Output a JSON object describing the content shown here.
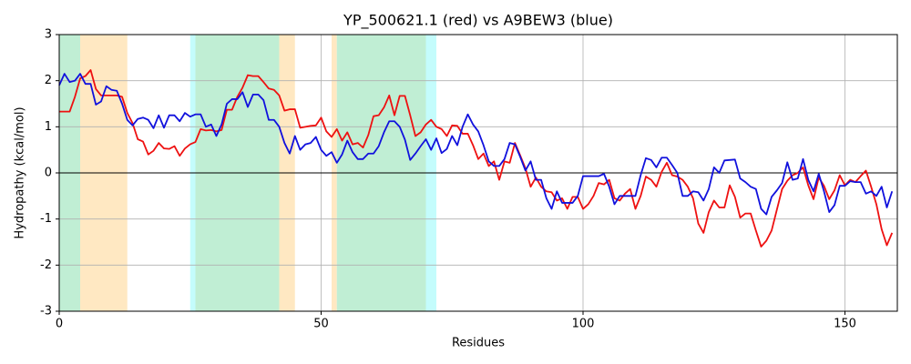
{
  "chart_data": {
    "type": "line",
    "title": "YP_500621.1 (red) vs A9BEW3 (blue)",
    "x_label": "Residues",
    "y_label": "Hydropathy (kcal/mol)",
    "xlim": [
      0,
      160
    ],
    "ylim": [
      -3,
      3
    ],
    "xticks": [
      0,
      50,
      100,
      150
    ],
    "yticks": [
      -3,
      -2,
      -1,
      0,
      1,
      2,
      3
    ],
    "grid": true,
    "regions": [
      {
        "start": 0,
        "end": 4,
        "color": "#c0eed4"
      },
      {
        "start": 4,
        "end": 13,
        "color": "#ffe8c2"
      },
      {
        "start": 25,
        "end": 26,
        "color": "#c4fcfc"
      },
      {
        "start": 26,
        "end": 42,
        "color": "#c0eed4"
      },
      {
        "start": 42,
        "end": 45,
        "color": "#ffe8c2"
      },
      {
        "start": 52,
        "end": 53,
        "color": "#ffe8c2"
      },
      {
        "start": 53,
        "end": 70,
        "color": "#c0eed4"
      },
      {
        "start": 70,
        "end": 72,
        "color": "#c4fcfc"
      }
    ],
    "x": [
      0,
      1,
      2,
      3,
      4,
      5,
      6,
      7,
      8,
      9,
      10,
      11,
      12,
      13,
      14,
      15,
      16,
      17,
      18,
      19,
      20,
      21,
      22,
      23,
      24,
      25,
      26,
      27,
      28,
      29,
      30,
      31,
      32,
      33,
      34,
      35,
      36,
      37,
      38,
      39,
      40,
      41,
      42,
      43,
      44,
      45,
      46,
      47,
      48,
      49,
      50,
      51,
      52,
      53,
      54,
      55,
      56,
      57,
      58,
      59,
      60,
      61,
      62,
      63,
      64,
      65,
      66,
      67,
      68,
      69,
      70,
      71,
      72,
      73,
      74,
      75,
      76,
      77,
      78,
      79,
      80,
      81,
      82,
      83,
      84,
      85,
      86,
      87,
      88,
      89,
      90,
      91,
      92,
      93,
      94,
      95,
      96,
      97,
      98,
      99,
      100,
      101,
      102,
      103,
      104,
      105,
      106,
      107,
      108,
      109,
      110,
      111,
      112,
      113,
      114,
      115,
      116,
      117,
      118,
      119,
      120,
      121,
      122,
      123,
      124,
      125,
      126,
      127,
      128,
      129,
      130,
      131,
      132,
      133,
      134,
      135,
      136,
      137,
      138,
      139,
      140,
      141,
      142,
      143,
      144,
      145,
      146,
      147,
      148,
      149,
      150,
      151,
      152,
      153,
      154,
      155,
      156,
      157,
      158,
      159
    ],
    "series": [
      {
        "color": "#ee1111",
        "values": [
          1.33,
          1.33,
          1.33,
          1.65,
          2.05,
          2.1,
          2.23,
          1.82,
          1.68,
          1.68,
          1.68,
          1.68,
          1.65,
          1.3,
          1.08,
          0.73,
          0.68,
          0.4,
          0.48,
          0.65,
          0.53,
          0.52,
          0.58,
          0.37,
          0.53,
          0.62,
          0.67,
          0.95,
          0.92,
          0.93,
          0.9,
          0.93,
          1.37,
          1.37,
          1.65,
          1.85,
          2.12,
          2.1,
          2.1,
          1.97,
          1.83,
          1.8,
          1.68,
          1.35,
          1.38,
          1.38,
          0.98,
          1.0,
          1.02,
          1.03,
          1.2,
          0.9,
          0.78,
          0.95,
          0.7,
          0.88,
          0.62,
          0.65,
          0.55,
          0.82,
          1.23,
          1.25,
          1.42,
          1.68,
          1.25,
          1.67,
          1.67,
          1.25,
          0.8,
          0.88,
          1.05,
          1.15,
          1.0,
          0.95,
          0.8,
          1.03,
          1.02,
          0.85,
          0.85,
          0.6,
          0.3,
          0.42,
          0.15,
          0.25,
          -0.15,
          0.25,
          0.22,
          0.65,
          0.38,
          0.1,
          -0.3,
          -0.1,
          -0.3,
          -0.4,
          -0.42,
          -0.6,
          -0.55,
          -0.78,
          -0.52,
          -0.52,
          -0.78,
          -0.68,
          -0.5,
          -0.22,
          -0.25,
          -0.15,
          -0.55,
          -0.6,
          -0.45,
          -0.35,
          -0.78,
          -0.5,
          -0.08,
          -0.15,
          -0.3,
          0.02,
          0.22,
          -0.05,
          -0.08,
          -0.15,
          -0.3,
          -0.55,
          -1.1,
          -1.3,
          -0.85,
          -0.6,
          -0.75,
          -0.75,
          -0.27,
          -0.52,
          -0.97,
          -0.88,
          -0.88,
          -1.25,
          -1.6,
          -1.47,
          -1.25,
          -0.8,
          -0.35,
          -0.17,
          -0.05,
          0.0,
          0.12,
          -0.27,
          -0.57,
          -0.1,
          -0.28,
          -0.57,
          -0.38,
          -0.05,
          -0.27,
          -0.15,
          -0.2,
          -0.07,
          0.05,
          -0.3,
          -0.68,
          -1.22,
          -1.57,
          -1.3
        ]
      },
      {
        "color": "#1111dd",
        "values": [
          1.9,
          2.15,
          1.97,
          2.0,
          2.15,
          1.93,
          1.93,
          1.48,
          1.55,
          1.88,
          1.8,
          1.78,
          1.5,
          1.15,
          1.03,
          1.17,
          1.2,
          1.15,
          0.97,
          1.25,
          0.98,
          1.25,
          1.25,
          1.12,
          1.3,
          1.22,
          1.27,
          1.27,
          1.0,
          1.05,
          0.8,
          1.05,
          1.5,
          1.6,
          1.6,
          1.75,
          1.43,
          1.7,
          1.7,
          1.58,
          1.15,
          1.15,
          1.0,
          0.65,
          0.42,
          0.8,
          0.5,
          0.62,
          0.65,
          0.78,
          0.5,
          0.37,
          0.45,
          0.22,
          0.4,
          0.7,
          0.45,
          0.3,
          0.3,
          0.42,
          0.42,
          0.58,
          0.88,
          1.12,
          1.12,
          1.0,
          0.72,
          0.28,
          0.42,
          0.58,
          0.73,
          0.5,
          0.75,
          0.43,
          0.52,
          0.8,
          0.6,
          1.0,
          1.27,
          1.05,
          0.9,
          0.6,
          0.25,
          0.15,
          0.15,
          0.3,
          0.65,
          0.62,
          0.35,
          0.05,
          0.25,
          -0.15,
          -0.15,
          -0.55,
          -0.78,
          -0.4,
          -0.65,
          -0.65,
          -0.65,
          -0.5,
          -0.07,
          -0.07,
          -0.07,
          -0.07,
          -0.02,
          -0.3,
          -0.68,
          -0.5,
          -0.5,
          -0.5,
          -0.5,
          -0.05,
          0.32,
          0.28,
          0.12,
          0.33,
          0.33,
          0.17,
          0.0,
          -0.5,
          -0.5,
          -0.4,
          -0.42,
          -0.6,
          -0.35,
          0.12,
          0.0,
          0.27,
          0.28,
          0.29,
          -0.12,
          -0.2,
          -0.3,
          -0.35,
          -0.78,
          -0.9,
          -0.52,
          -0.38,
          -0.22,
          0.23,
          -0.15,
          -0.12,
          0.3,
          -0.15,
          -0.4,
          -0.02,
          -0.4,
          -0.85,
          -0.7,
          -0.28,
          -0.28,
          -0.18,
          -0.2,
          -0.2,
          -0.45,
          -0.4,
          -0.5,
          -0.3,
          -0.75,
          -0.4
        ]
      }
    ]
  }
}
